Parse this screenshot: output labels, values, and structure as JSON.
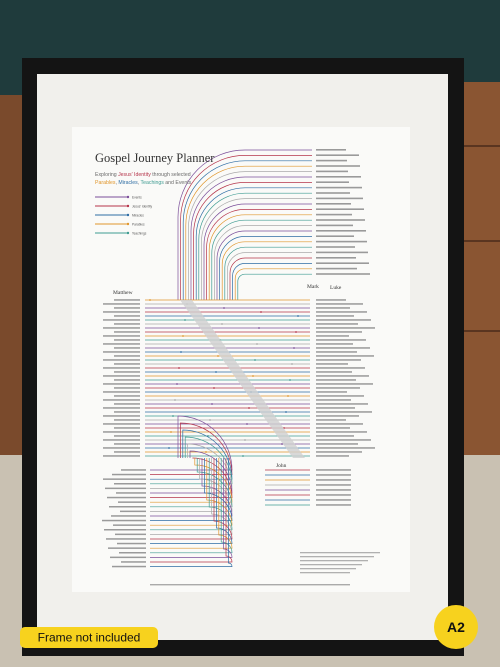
{
  "poster": {
    "title": "Gospel Journey Planner",
    "subtitle": [
      {
        "text": "Exploring ",
        "color": "#6a6a6a"
      },
      {
        "text": "Jesus' Identity",
        "color": "#b5344a"
      },
      {
        "text": " through selected",
        "color": "#6a6a6a"
      },
      {
        "text": "Parables",
        "color": "#e0962c"
      },
      {
        "text": ", ",
        "color": "#6a6a6a"
      },
      {
        "text": "Miracles",
        "color": "#2e6da4"
      },
      {
        "text": ", ",
        "color": "#6a6a6a"
      },
      {
        "text": "Teachings",
        "color": "#3f9c92"
      },
      {
        "text": " and Events",
        "color": "#6a6a6a"
      }
    ],
    "legend": [
      {
        "label": "Events",
        "color": "#7b4f9a"
      },
      {
        "label": "Jesus' Identity",
        "color": "#b5344a"
      },
      {
        "label": "Miracles",
        "color": "#2e6da4"
      },
      {
        "label": "Parables",
        "color": "#e0962c"
      },
      {
        "label": "Teachings",
        "color": "#3f9c92"
      }
    ],
    "gospels": [
      "Matthew",
      "Mark",
      "Luke",
      "John"
    ]
  },
  "badges": {
    "frame": "Frame not included",
    "size": "A2"
  }
}
